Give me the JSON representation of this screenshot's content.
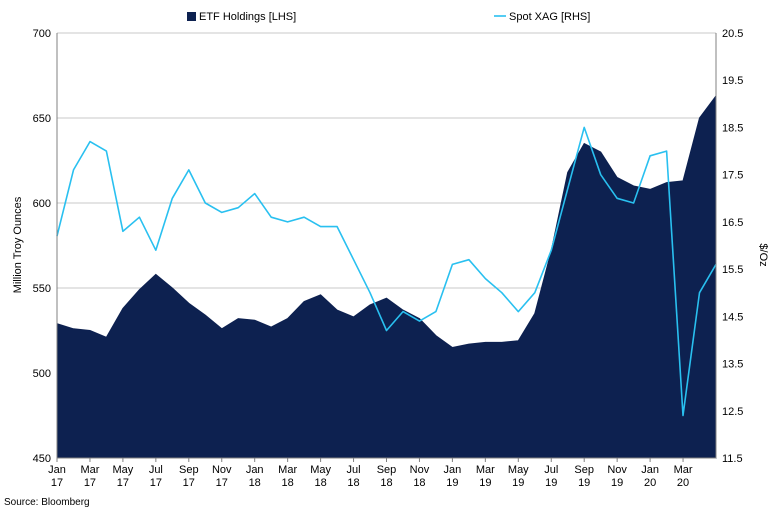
{
  "source": "Source: Bloomberg",
  "chart_data": {
    "type": "area+line",
    "xlabel": "",
    "legend": {
      "position": "top",
      "items": [
        {
          "name": "ETF Holdings [LHS]",
          "type": "area",
          "color": "#0d2150"
        },
        {
          "name": "Spot XAG [RHS]",
          "type": "line",
          "color": "#29c0f0"
        }
      ]
    },
    "y_left": {
      "label": "Million Troy  Ounces",
      "ylim": [
        450,
        700
      ],
      "ticks": [
        "450",
        "500",
        "550",
        "600",
        "650",
        "700"
      ]
    },
    "y_right": {
      "label": "$/Oz",
      "ylim": [
        11.5,
        20.5
      ],
      "ticks": [
        "11.5",
        "12.5",
        "13.5",
        "14.5",
        "15.5",
        "16.5",
        "17.5",
        "18.5",
        "19.5",
        "20.5"
      ]
    },
    "grid": {
      "horizontal": true,
      "vertical": false
    },
    "x_ticks": [
      {
        "m": "Jan",
        "y": "17"
      },
      {
        "m": "Mar",
        "y": "17"
      },
      {
        "m": "May",
        "y": "17"
      },
      {
        "m": "Jul",
        "y": "17"
      },
      {
        "m": "Sep",
        "y": "17"
      },
      {
        "m": "Nov",
        "y": "17"
      },
      {
        "m": "Jan",
        "y": "18"
      },
      {
        "m": "Mar",
        "y": "18"
      },
      {
        "m": "May",
        "y": "18"
      },
      {
        "m": "Jul",
        "y": "18"
      },
      {
        "m": "Sep",
        "y": "18"
      },
      {
        "m": "Nov",
        "y": "18"
      },
      {
        "m": "Jan",
        "y": "19"
      },
      {
        "m": "Mar",
        "y": "19"
      },
      {
        "m": "May",
        "y": "19"
      },
      {
        "m": "Jul",
        "y": "19"
      },
      {
        "m": "Sep",
        "y": "19"
      },
      {
        "m": "Nov",
        "y": "19"
      },
      {
        "m": "Jan",
        "y": "20"
      },
      {
        "m": "Mar",
        "y": "20"
      }
    ],
    "x_range": [
      "2017-01",
      "2020-05"
    ],
    "series": [
      {
        "name": "ETF Holdings [LHS]",
        "axis": "left",
        "x": [
          "2017-01",
          "2017-02",
          "2017-03",
          "2017-04",
          "2017-05",
          "2017-06",
          "2017-07",
          "2017-08",
          "2017-09",
          "2017-10",
          "2017-11",
          "2017-12",
          "2018-01",
          "2018-02",
          "2018-03",
          "2018-04",
          "2018-05",
          "2018-06",
          "2018-07",
          "2018-08",
          "2018-09",
          "2018-10",
          "2018-11",
          "2018-12",
          "2019-01",
          "2019-02",
          "2019-03",
          "2019-04",
          "2019-05",
          "2019-06",
          "2019-07",
          "2019-08",
          "2019-09",
          "2019-10",
          "2019-11",
          "2019-12",
          "2020-01",
          "2020-02",
          "2020-03",
          "2020-04",
          "2020-05"
        ],
        "values": [
          529,
          526,
          525,
          521,
          538,
          549,
          558,
          550,
          541,
          534,
          526,
          532,
          531,
          527,
          532,
          542,
          546,
          537,
          533,
          540,
          544,
          537,
          532,
          522,
          515,
          517,
          518,
          518,
          519,
          535,
          572,
          618,
          635,
          630,
          615,
          610,
          608,
          612,
          613,
          650,
          663
        ]
      },
      {
        "name": "Spot XAG [RHS]",
        "axis": "right",
        "x": [
          "2017-01",
          "2017-02",
          "2017-03",
          "2017-04",
          "2017-05",
          "2017-06",
          "2017-07",
          "2017-08",
          "2017-09",
          "2017-10",
          "2017-11",
          "2017-12",
          "2018-01",
          "2018-02",
          "2018-03",
          "2018-04",
          "2018-05",
          "2018-06",
          "2018-07",
          "2018-08",
          "2018-09",
          "2018-10",
          "2018-11",
          "2018-12",
          "2019-01",
          "2019-02",
          "2019-03",
          "2019-04",
          "2019-05",
          "2019-06",
          "2019-07",
          "2019-08",
          "2019-09",
          "2019-10",
          "2019-11",
          "2019-12",
          "2020-01",
          "2020-02",
          "2020-03",
          "2020-04",
          "2020-05"
        ],
        "values": [
          16.2,
          17.6,
          18.2,
          18.0,
          16.3,
          16.6,
          15.9,
          17.0,
          17.6,
          16.9,
          16.7,
          16.8,
          17.1,
          16.6,
          16.5,
          16.6,
          16.4,
          16.4,
          15.7,
          15.0,
          14.2,
          14.6,
          14.4,
          14.6,
          15.6,
          15.7,
          15.3,
          15.0,
          14.6,
          15.0,
          15.9,
          17.2,
          18.5,
          17.5,
          17.0,
          16.9,
          17.9,
          18.0,
          12.4,
          15.0,
          15.6
        ]
      }
    ]
  }
}
